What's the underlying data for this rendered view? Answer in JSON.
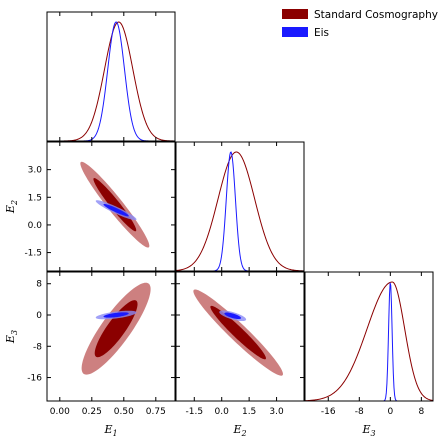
{
  "chart_data": {
    "type": "corner",
    "legend": {
      "placement": "top-right",
      "entries": [
        {
          "name": "Standard Cosmography",
          "color": "#8b0000"
        },
        {
          "name": "Eis",
          "color": "#1a1aff"
        }
      ]
    },
    "colors": {
      "standard": "#8b0000",
      "standard_light": "#c46a6a",
      "eis": "#1a1aff",
      "eis_light": "#8a8af5"
    },
    "parameters": [
      {
        "key": "E1",
        "symbol": "E",
        "subscript": "1",
        "range": [
          -0.1,
          0.9
        ],
        "ticks": [
          "0.00",
          "0.25",
          "0.50",
          "0.75"
        ],
        "tick_values": [
          0,
          0.25,
          0.5,
          0.75
        ]
      },
      {
        "key": "E2",
        "symbol": "E",
        "subscript": "2",
        "range": [
          -2.5,
          4.5
        ],
        "ticks": [
          "-1.5",
          "0.0",
          "1.5",
          "3.0"
        ],
        "tick_values": [
          -1.5,
          0,
          1.5,
          3.0
        ]
      },
      {
        "key": "E3",
        "symbol": "E",
        "subscript": "3",
        "range": [
          -22,
          11
        ],
        "ticks": [
          "-16",
          "-8",
          "0",
          "8"
        ],
        "tick_values": [
          -16,
          -8,
          0,
          8
        ]
      }
    ],
    "marginals": {
      "E1": {
        "standard": {
          "mean": 0.46,
          "sd": 0.11
        },
        "eis": {
          "mean": 0.44,
          "sd": 0.065
        }
      },
      "E2": {
        "standard": {
          "mean": 0.8,
          "sd": 1.0
        },
        "eis": {
          "mean": 0.5,
          "sd": 0.25
        }
      },
      "E3": {
        "standard": {
          "mean": 0.5,
          "sd": 3.2,
          "skew_left_sd": 6.5
        },
        "eis": {
          "mean": 0.0,
          "sd": 0.45
        }
      }
    },
    "contours": {
      "E1_E2": {
        "standard": {
          "center": [
            0.43,
            1.1
          ],
          "sd": [
            0.11,
            0.95
          ],
          "corr": -0.96
        },
        "eis": {
          "center": [
            0.44,
            0.8
          ],
          "sd": [
            0.065,
            0.22
          ],
          "corr": -0.93
        }
      },
      "E1_E3": {
        "standard": {
          "center": [
            0.44,
            -3.5
          ],
          "sd": [
            0.11,
            4.8
          ],
          "corr": 0.86
        },
        "eis": {
          "center": [
            0.44,
            0.0
          ],
          "sd": [
            0.065,
            0.45
          ],
          "corr": 0.6
        }
      },
      "E2_E3": {
        "standard": {
          "center": [
            0.9,
            -4.5
          ],
          "sd": [
            1.0,
            4.5
          ],
          "corr": -0.96
        },
        "eis": {
          "center": [
            0.6,
            -0.2
          ],
          "sd": [
            0.3,
            0.55
          ],
          "corr": -0.7
        }
      }
    }
  }
}
